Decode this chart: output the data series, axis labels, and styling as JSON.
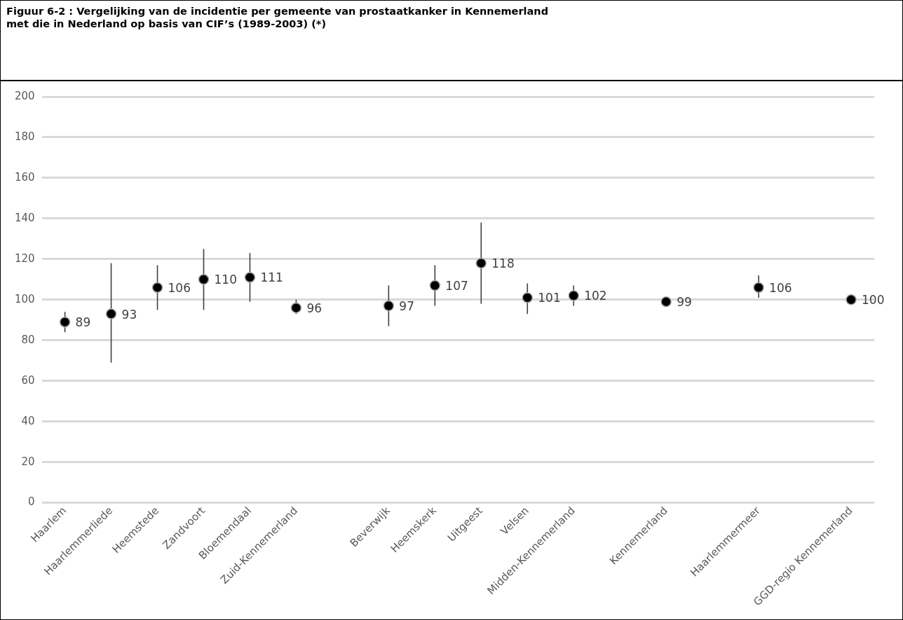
{
  "chart_data": {
    "type": "scatter",
    "title": "Figuur 6-2  : Vergelijking van de incidentie per gemeente van prostaatkanker in Kennemerland\nmet die in Nederland op basis van CIF’s (1989-2003) (*)",
    "categories": [
      "Haarlem",
      "Haarlemmerliede",
      "Heemstede",
      "Zandvoort",
      "Bloemendaal",
      "Zuid-Kennemerland",
      null,
      "Beverwijk",
      "Heemskerk",
      "Uitgeest",
      "Velsen",
      "Midden-Kennemerland",
      null,
      "Kennemerland",
      null,
      "Haarlemmermeer",
      null,
      "GGD-regio Kennemerland"
    ],
    "values": [
      89,
      93,
      106,
      110,
      111,
      96,
      null,
      97,
      107,
      118,
      101,
      102,
      null,
      99,
      null,
      106,
      null,
      100
    ],
    "errors": [
      [
        84,
        94
      ],
      [
        69,
        118
      ],
      [
        95,
        117
      ],
      [
        95,
        125
      ],
      [
        99,
        123
      ],
      [
        93,
        100
      ],
      null,
      [
        87,
        107
      ],
      [
        97,
        117
      ],
      [
        98,
        138
      ],
      [
        93,
        108
      ],
      [
        97,
        107
      ],
      null,
      null,
      null,
      [
        101,
        112
      ],
      null,
      null
    ],
    "color": "#000000",
    "marker": "circle",
    "data_labels": true,
    "ylim": [
      0,
      200
    ],
    "yticks": [
      0,
      20,
      40,
      60,
      80,
      100,
      120,
      140,
      160,
      180,
      200
    ],
    "grid": "y",
    "legend": false
  }
}
